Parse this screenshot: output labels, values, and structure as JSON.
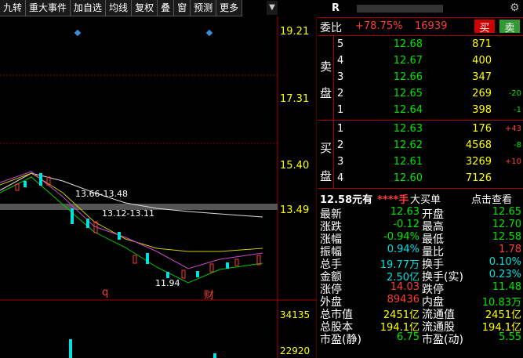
{
  "toolbar": {
    "buttons": [
      "九转",
      "重大事件",
      "加自选",
      "均线",
      "复权",
      "叠",
      "窗",
      "预测",
      "更多"
    ]
  },
  "chart": {
    "price_labels": [
      "19.21",
      "17.31",
      "15.40",
      "13.49"
    ],
    "volume_labels": [
      "34135",
      "22920"
    ],
    "annotations": [
      "13.66-13.48",
      "13.12-13.11",
      "11.94",
      "q",
      "财"
    ]
  },
  "quote": {
    "code": "R",
    "ratio_label": "委比",
    "ratio": "+78.75%",
    "ratio_diff": "16939",
    "buy_button": "买",
    "sell_button": "卖"
  },
  "order_book": {
    "sell_label": [
      "卖",
      "盘"
    ],
    "buy_label": [
      "买",
      "盘"
    ],
    "sell": [
      [
        "5",
        "12.68",
        "871",
        ""
      ],
      [
        "4",
        "12.67",
        "400",
        ""
      ],
      [
        "3",
        "12.66",
        "347",
        ""
      ],
      [
        "2",
        "12.65",
        "269",
        "-20"
      ],
      [
        "1",
        "12.64",
        "398",
        "-1"
      ]
    ],
    "buy": [
      [
        "1",
        "12.63",
        "176",
        "+43"
      ],
      [
        "2",
        "12.62",
        "4568",
        "-8"
      ],
      [
        "3",
        "12.61",
        "3269",
        "+10"
      ],
      [
        "4",
        "12.60",
        "7126",
        ""
      ]
    ]
  },
  "big_order": {
    "price": "12.58元有",
    "qty": "****手",
    "label": "大买单",
    "link": "点击查看"
  },
  "stats": [
    [
      "最新",
      "12.63",
      "开盘",
      "12.65"
    ],
    [
      "涨跌",
      "-0.12",
      "最高",
      "12.70"
    ],
    [
      "涨幅",
      "-0.94%",
      "最低",
      "12.58"
    ],
    [
      "振幅",
      "0.94%",
      "量比",
      "1.78"
    ],
    [
      "总手",
      "19.77万",
      "换手",
      "0.10%"
    ],
    [
      "金额",
      "2.50亿",
      "换手(实)",
      "0.23%"
    ],
    [
      "涨停",
      "14.03",
      "跌停",
      "11.48"
    ],
    [
      "外盘",
      "89436",
      "内盘",
      "10.83万"
    ],
    [
      "总市值",
      "2451亿",
      "流通值",
      "2451亿"
    ],
    [
      "总股本",
      "194.1亿",
      "流通股",
      "194.1亿"
    ],
    [
      "市盈(静)",
      "6.75",
      "市盈(动)",
      "5.55"
    ]
  ]
}
